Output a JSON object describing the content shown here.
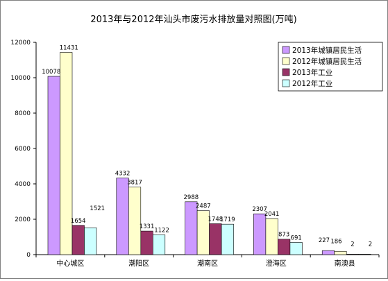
{
  "chart_data": {
    "type": "bar",
    "title": "2013年与2012年汕头市废污水排放量对照图(万吨)",
    "categories": [
      "中心城区",
      "潮阳区",
      "潮南区",
      "澄海区",
      "南澳县"
    ],
    "ylim": [
      0,
      12000
    ],
    "yticks": [
      0,
      2000,
      4000,
      6000,
      8000,
      10000,
      12000
    ],
    "grid": false,
    "legend_position": "top-right",
    "series": [
      {
        "name": "2013年城镇居民生活",
        "color": "#cc99ff",
        "values": [
          10078,
          4332,
          2988,
          2307,
          227
        ]
      },
      {
        "name": "2012年城镇居民生活",
        "color": "#ffffcc",
        "values": [
          11431,
          3817,
          2487,
          2041,
          186
        ]
      },
      {
        "name": "2013年工业",
        "color": "#993366",
        "values": [
          1654,
          1331,
          1748,
          873,
          2
        ]
      },
      {
        "name": "2012年工业",
        "color": "#ccffff",
        "values": [
          1521,
          1122,
          1719,
          691,
          2
        ]
      }
    ]
  }
}
